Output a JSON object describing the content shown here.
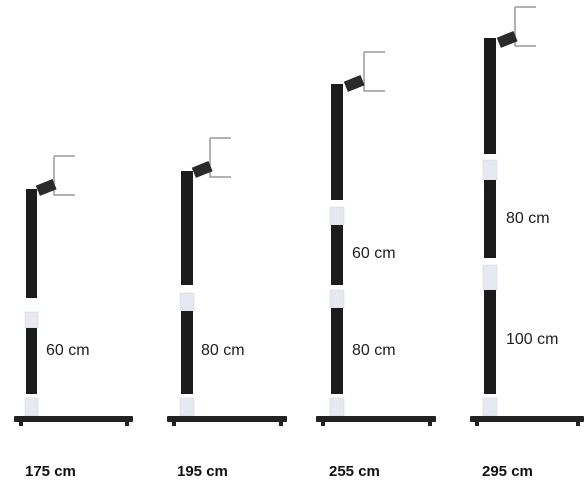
{
  "colors": {
    "pole": "#1c1c1c",
    "joint": "#e6e8f2",
    "bracket": "#9a9a9a",
    "base": "#222222"
  },
  "stands": [
    {
      "height_label": "175 cm",
      "segment_labels": [
        "60 cm"
      ]
    },
    {
      "height_label": "195 cm",
      "segment_labels": [
        "80 cm"
      ]
    },
    {
      "height_label": "255 cm",
      "segment_labels": [
        "60 cm",
        "80 cm"
      ]
    },
    {
      "height_label": "295 cm",
      "segment_labels": [
        "80 cm",
        "100 cm"
      ]
    }
  ]
}
